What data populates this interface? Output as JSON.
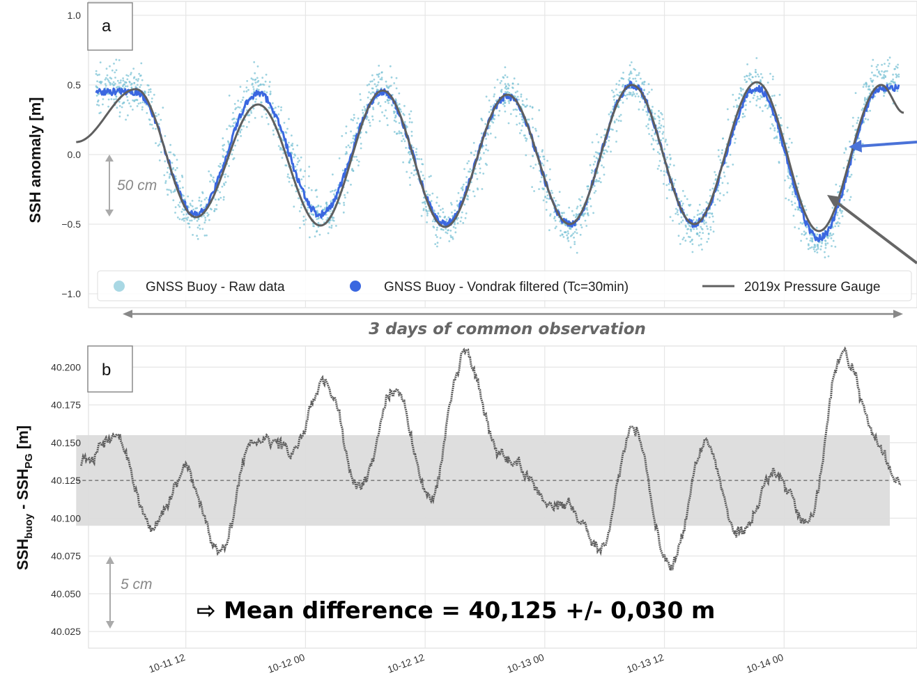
{
  "chart_data": [
    {
      "type": "line",
      "panel_label": "a",
      "ylabel": "SSH anomaly [m]",
      "ylim": [
        -1.1,
        1.1
      ],
      "yticks": [
        1.0,
        0.5,
        0.0,
        -0.5,
        -1.0
      ],
      "ytick_labels": [
        "1.0",
        "0.5",
        "0.0",
        "−0.5",
        "−1.0"
      ],
      "xlim": [
        "2019-10-10 12:00",
        "2019-10-14 00:00"
      ],
      "grid": true,
      "legend_position": "bottom",
      "series": [
        {
          "name": "GNSS Buoy - Raw data",
          "kind": "scatter",
          "color": "#7cc3d6",
          "x": [
            "2019-10-10 19:00",
            "2019-10-11 01:00",
            "2019-10-11 07:15",
            "2019-10-11 13:30",
            "2019-10-11 19:45",
            "2019-10-12 02:00",
            "2019-10-12 08:15",
            "2019-10-12 14:30",
            "2019-10-12 20:45",
            "2019-10-13 03:00",
            "2019-10-13 09:15",
            "2019-10-13 15:30",
            "2019-10-13 21:45"
          ],
          "y": [
            0.47,
            -0.45,
            0.44,
            -0.45,
            0.45,
            -0.52,
            0.44,
            -0.52,
            0.5,
            -0.52,
            0.5,
            -0.65,
            0.55
          ]
        },
        {
          "name": "GNSS Buoy - Vondrak filtered (Tc=30min)",
          "kind": "line",
          "color": "#3a67e0",
          "x": [
            "2019-10-10 19:00",
            "2019-10-11 01:00",
            "2019-10-11 07:15",
            "2019-10-11 13:30",
            "2019-10-11 19:45",
            "2019-10-12 02:00",
            "2019-10-12 08:15",
            "2019-10-12 14:30",
            "2019-10-12 20:45",
            "2019-10-13 03:00",
            "2019-10-13 09:15",
            "2019-10-13 15:30",
            "2019-10-13 21:45"
          ],
          "y": [
            0.45,
            -0.43,
            0.44,
            -0.43,
            0.45,
            -0.5,
            0.42,
            -0.5,
            0.5,
            -0.5,
            0.48,
            -0.6,
            0.48
          ]
        },
        {
          "name": "2019x Pressure Gauge",
          "kind": "line",
          "color": "#5f5f5f",
          "x": [
            "2019-10-10 13:00",
            "2019-10-10 19:00",
            "2019-10-11 01:00",
            "2019-10-11 07:15",
            "2019-10-11 13:30",
            "2019-10-11 19:45",
            "2019-10-12 02:00",
            "2019-10-12 08:15",
            "2019-10-12 14:30",
            "2019-10-12 20:45",
            "2019-10-13 03:00",
            "2019-10-13 09:15",
            "2019-10-13 15:30",
            "2019-10-13 21:45",
            "2019-10-14 00:00"
          ],
          "y": [
            0.09,
            0.47,
            -0.45,
            0.36,
            -0.51,
            0.46,
            -0.52,
            0.43,
            -0.5,
            0.5,
            -0.5,
            0.52,
            -0.55,
            0.5,
            0.3
          ]
        }
      ]
    },
    {
      "type": "line",
      "panel_label": "b",
      "ylabel_main": "SSH",
      "ylabel_sub1": "buoy",
      "ylabel_mid": " - SSH",
      "ylabel_sub2": "PG",
      "ylabel_tail": " [m]",
      "ylim": [
        40.014,
        40.214
      ],
      "yticks": [
        40.2,
        40.175,
        40.15,
        40.125,
        40.1,
        40.075,
        40.05,
        40.025
      ],
      "ytick_labels": [
        "40.200",
        "40.175",
        "40.150",
        "40.125",
        "40.100",
        "40.075",
        "40.050",
        "40.025"
      ],
      "xlim": [
        "2019-10-10 12:00",
        "2019-10-14 00:00"
      ],
      "xticks": [
        "10-11 12",
        "10-12 00",
        "10-12 12",
        "10-13 00",
        "10-13 12",
        "10-14 00"
      ],
      "grid": true,
      "mean": 40.125,
      "band": [
        40.095,
        40.155
      ],
      "series": [
        {
          "name": "SSH buoy - SSH PG",
          "color": "#5f5f5f",
          "x": [
            "2019-10-10 13:30",
            "2019-10-10 17:00",
            "2019-10-10 20:30",
            "2019-10-11 00:00",
            "2019-10-11 03:30",
            "2019-10-11 07:00",
            "2019-10-11 10:30",
            "2019-10-11 14:00",
            "2019-10-11 17:30",
            "2019-10-11 21:00",
            "2019-10-12 00:30",
            "2019-10-12 04:00",
            "2019-10-12 07:30",
            "2019-10-12 14:00",
            "2019-10-12 17:30",
            "2019-10-12 21:00",
            "2019-10-13 00:30",
            "2019-10-13 04:00",
            "2019-10-13 07:30",
            "2019-10-13 11:00",
            "2019-10-13 14:30",
            "2019-10-13 18:00",
            "2019-10-13 21:30",
            "2019-10-13 23:30"
          ],
          "y": [
            40.135,
            40.155,
            40.094,
            40.13,
            40.078,
            40.155,
            40.145,
            40.19,
            40.12,
            40.185,
            40.11,
            40.21,
            40.14,
            40.11,
            40.08,
            40.16,
            40.065,
            40.15,
            40.09,
            40.13,
            40.1,
            40.21,
            40.15,
            40.12
          ]
        }
      ]
    }
  ],
  "annotations": {
    "scale_a": "50 cm",
    "scale_b": "5 cm",
    "span_label": "3 days of common observation",
    "mean_text": "⇨ Mean difference = 40,125 +/- 0,030 m"
  }
}
